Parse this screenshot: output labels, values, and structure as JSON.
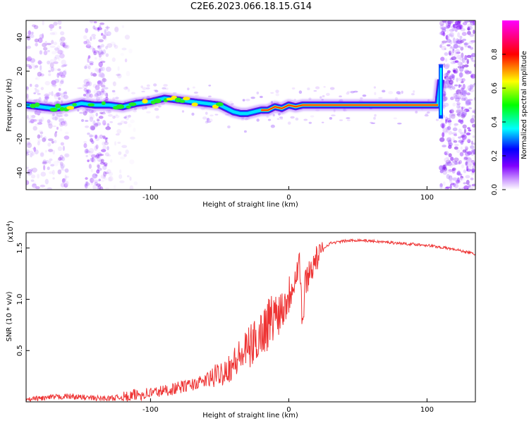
{
  "figure_title": "C2E6.2023.066.18.15.G14",
  "chart_data": [
    {
      "type": "heatmap",
      "title": "",
      "xlabel": "Height of straight line (km)",
      "ylabel": "Frequency (Hz)",
      "xlim": [
        -190,
        135
      ],
      "ylim": [
        -50,
        50
      ],
      "xticks": [
        -100,
        0,
        100
      ],
      "xtick_labels": [
        "-100",
        "0",
        "100"
      ],
      "yticks": [
        -40,
        -20,
        0,
        20,
        40
      ],
      "ytick_labels": [
        "-40",
        "-20",
        "0",
        "20",
        "40"
      ],
      "colorbar": {
        "label": "Normalized spectral amplitude",
        "range": [
          0,
          1
        ],
        "ticks": [
          0.0,
          0.2,
          0.4,
          0.6,
          0.8
        ],
        "tick_labels": [
          "0.0",
          "0.2",
          "0.4",
          "0.6",
          "0.8"
        ],
        "colormap": [
          "#ffffff",
          "#8000ff",
          "#0000ff",
          "#00ffff",
          "#00ff00",
          "#ffff00",
          "#ff0000",
          "#ff00ff"
        ]
      },
      "ridge": {
        "x": [
          -190,
          -180,
          -170,
          -160,
          -150,
          -140,
          -130,
          -120,
          -110,
          -100,
          -90,
          -80,
          -70,
          -60,
          -50,
          -45,
          -40,
          -35,
          -30,
          -25,
          -20,
          -15,
          -10,
          -5,
          0,
          5,
          10,
          15,
          20,
          108,
          110,
          112
        ],
        "frequency": [
          0,
          -1,
          -2,
          -1,
          1,
          0,
          0,
          -1,
          1,
          2,
          4,
          3,
          2,
          1,
          0,
          -2,
          -4,
          -5,
          -5,
          -4,
          -3,
          -3,
          -1,
          -2,
          0,
          -1,
          0,
          0,
          0,
          0,
          15,
          20
        ]
      }
    },
    {
      "type": "line",
      "title": "",
      "xlabel": "Height of straight line (km)",
      "ylabel": "SNR (10 * v/v)",
      "scale_label": "(x10",
      "scale_exponent": "4",
      "xlim": [
        -190,
        135
      ],
      "ylim": [
        0,
        1.65
      ],
      "xticks": [
        -100,
        0,
        100
      ],
      "xtick_labels": [
        "-100",
        "0",
        "100"
      ],
      "yticks": [
        0.5,
        1.0,
        1.5
      ],
      "ytick_labels": [
        "0.5",
        "1.0",
        "1.5"
      ],
      "color": "#ee3333",
      "series": [
        {
          "x": [
            -190,
            -180,
            -170,
            -160,
            -150,
            -140,
            -130,
            -120,
            -110,
            -100,
            -90,
            -80,
            -70,
            -60,
            -50,
            -45,
            -40,
            -35,
            -30,
            -25,
            -20,
            -15,
            -10,
            -5,
            0,
            5,
            8,
            10,
            12,
            15,
            20,
            25,
            30,
            40,
            50,
            60,
            70,
            80,
            90,
            100,
            110,
            120,
            130,
            135
          ],
          "y": [
            0.02,
            0.04,
            0.05,
            0.06,
            0.05,
            0.04,
            0.04,
            0.05,
            0.08,
            0.1,
            0.12,
            0.15,
            0.18,
            0.22,
            0.3,
            0.35,
            0.4,
            0.48,
            0.55,
            0.62,
            0.72,
            0.82,
            0.9,
            0.96,
            1.08,
            1.3,
            1.4,
            0.75,
            1.2,
            1.3,
            1.42,
            1.5,
            1.55,
            1.57,
            1.58,
            1.57,
            1.56,
            1.55,
            1.54,
            1.53,
            1.51,
            1.49,
            1.46,
            1.44
          ]
        }
      ]
    }
  ]
}
